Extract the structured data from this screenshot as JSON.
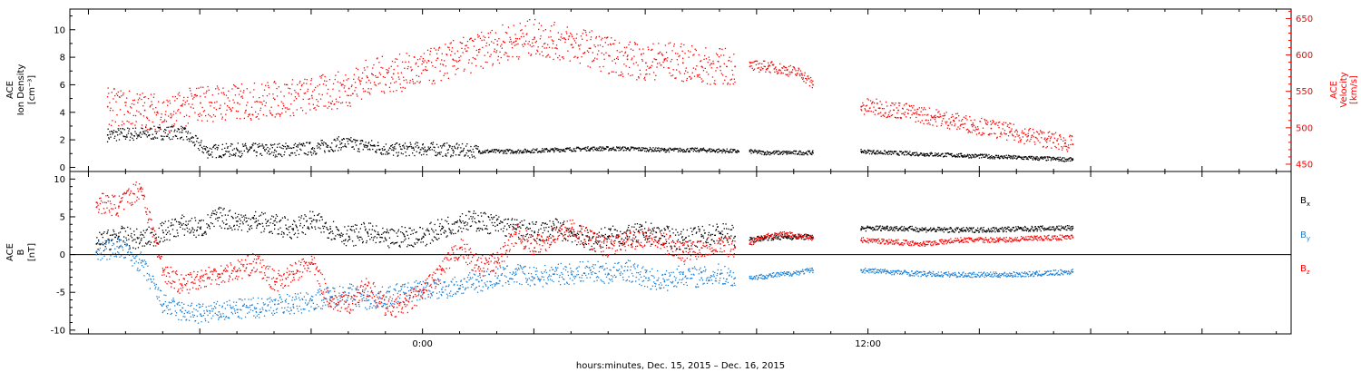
{
  "chart_data": [
    {
      "type": "scatter",
      "panel": "top",
      "ylabel_left": [
        "ACE",
        "Ion Density",
        "[cm⁻³]"
      ],
      "ylabel_right": [
        "ACE",
        "Velocity",
        "[km/s]"
      ],
      "ylim_left": [
        -0.3,
        11.5
      ],
      "ylim_right": [
        440,
        663
      ],
      "yticks_left": [
        "0",
        "2",
        "4",
        "6",
        "8",
        "10"
      ],
      "yticks_right": [
        "450",
        "500",
        "550",
        "600",
        "650"
      ],
      "series": [
        {
          "axis": "left",
          "color": "#000000",
          "segments": [
            {
              "x": [
                -8.5,
                -7.5,
                -6.5,
                -5.8,
                -5.0,
                -4.0,
                -3.0,
                -2.2,
                -1.5,
                -0.8,
                0.0,
                0.8,
                1.5,
                2.5,
                3.5,
                4.5,
                5.5,
                6.5,
                7.5,
                8.5
              ],
              "y": [
                2.4,
                2.5,
                2.6,
                1.2,
                1.3,
                1.3,
                1.4,
                1.8,
                1.6,
                1.3,
                1.4,
                1.3,
                1.2,
                1.2,
                1.3,
                1.4,
                1.4,
                1.3,
                1.3,
                1.2
              ]
            },
            {
              "x": [
                8.8,
                9.2,
                9.8,
                10.5
              ],
              "y": [
                1.2,
                1.1,
                1.1,
                1.1
              ]
            },
            {
              "x": [
                11.8,
                12.5,
                13.5,
                14.5,
                15.5,
                16.5,
                17.5
              ],
              "y": [
                1.2,
                1.1,
                1.0,
                0.9,
                0.8,
                0.7,
                0.6
              ]
            }
          ]
        },
        {
          "axis": "right",
          "color": "#ff0000",
          "segments": [
            {
              "x": [
                -8.5,
                -7.5,
                -6.8,
                -6.0,
                -5.0,
                -4.0,
                -3.0,
                -2.0,
                -1.5,
                -0.8,
                0.0,
                0.8,
                1.5,
                2.0,
                2.5,
                3.0,
                3.5,
                4.0,
                4.5,
                5.0,
                5.5,
                6.0,
                6.5,
                7.0,
                7.5,
                8.0,
                8.4
              ],
              "y": [
                530,
                525,
                520,
                535,
                535,
                540,
                545,
                555,
                570,
                575,
                580,
                595,
                605,
                615,
                620,
                625,
                620,
                615,
                610,
                600,
                595,
                590,
                595,
                590,
                585,
                585,
                585
              ]
            },
            {
              "x": [
                8.8,
                9.3,
                9.8,
                10.2,
                10.5
              ],
              "y": [
                585,
                585,
                580,
                575,
                560
              ]
            },
            {
              "x": [
                11.8,
                12.3,
                12.8,
                13.3,
                13.8,
                14.3,
                14.8,
                15.3,
                15.8,
                16.3,
                16.8,
                17.3,
                17.5
              ],
              "y": [
                530,
                528,
                525,
                520,
                515,
                510,
                505,
                500,
                495,
                490,
                485,
                480,
                478
              ]
            }
          ]
        }
      ]
    },
    {
      "type": "scatter",
      "panel": "bottom",
      "ylabel_left": [
        "ACE",
        "B",
        "[nT]"
      ],
      "ylim": [
        -10.5,
        11
      ],
      "yticks": [
        "-10",
        "-5",
        "0",
        "5",
        "10"
      ],
      "zero_line": true,
      "series": [
        {
          "label": "B",
          "subscript": "x",
          "color": "#000000",
          "segments": [
            {
              "x": [
                -8.8,
                -8.2,
                -7.6,
                -7.0,
                -6.5,
                -6.0,
                -5.5,
                -5.0,
                -4.5,
                -4.0,
                -3.5,
                -3.0,
                -2.5,
                -2.0,
                -1.5,
                -1.0,
                -0.5,
                0.0,
                0.5,
                1.0,
                1.5,
                2.0,
                2.5,
                3.0,
                3.5,
                4.0,
                4.5,
                5.0,
                5.5,
                6.0,
                6.5,
                7.0,
                7.5,
                8.0,
                8.4
              ],
              "y": [
                1.5,
                2.5,
                2.0,
                3.0,
                4.0,
                3.5,
                5.0,
                4.5,
                4.5,
                4.0,
                3.5,
                4.5,
                3.5,
                2.5,
                3.0,
                2.0,
                2.5,
                2.5,
                3.5,
                4.5,
                4.5,
                4.0,
                3.5,
                3.0,
                3.5,
                3.0,
                2.0,
                2.5,
                2.5,
                3.0,
                2.5,
                2.0,
                2.5,
                3.0,
                2.5
              ]
            },
            {
              "x": [
                8.8,
                9.2,
                9.8,
                10.5
              ],
              "y": [
                2.0,
                2.3,
                2.4,
                2.4
              ]
            },
            {
              "x": [
                11.8,
                12.5,
                13.5,
                14.5,
                15.5,
                16.5,
                17.5
              ],
              "y": [
                3.5,
                3.6,
                3.4,
                3.3,
                3.4,
                3.5,
                3.6
              ]
            }
          ]
        },
        {
          "label": "B",
          "subscript": "y",
          "color": "#1a7fd4",
          "segments": [
            {
              "x": [
                -8.8,
                -8.2,
                -7.6,
                -7.0,
                -6.5,
                -6.0,
                -5.5,
                -5.0,
                -4.5,
                -4.0,
                -3.5,
                -3.0,
                -2.5,
                -2.0,
                -1.5,
                -1.0,
                -0.5,
                0.0,
                0.5,
                1.0,
                1.5,
                2.0,
                2.5,
                3.0,
                3.5,
                4.0,
                4.5,
                5.0,
                5.5,
                6.0,
                6.5,
                7.0,
                7.5,
                8.0,
                8.4
              ],
              "y": [
                0.5,
                1.0,
                -1.0,
                -6.5,
                -7.5,
                -7.8,
                -7.5,
                -7.2,
                -7.0,
                -6.5,
                -6.5,
                -6.0,
                -5.5,
                -5.0,
                -6.0,
                -5.5,
                -5.0,
                -4.5,
                -4.5,
                -4.0,
                -3.5,
                -3.0,
                -2.5,
                -3.0,
                -2.5,
                -2.5,
                -2.0,
                -2.5,
                -2.0,
                -3.0,
                -3.5,
                -2.5,
                -3.0,
                -2.5,
                -3.0
              ]
            },
            {
              "x": [
                8.8,
                9.2,
                9.8,
                10.5
              ],
              "y": [
                -3.0,
                -2.8,
                -2.5,
                -2.0
              ]
            },
            {
              "x": [
                11.8,
                12.5,
                13.5,
                14.5,
                15.5,
                16.5,
                17.5
              ],
              "y": [
                -2.0,
                -2.2,
                -2.5,
                -2.6,
                -2.6,
                -2.5,
                -2.2
              ]
            }
          ]
        },
        {
          "label": "B",
          "subscript": "z",
          "color": "#ff0000",
          "segments": [
            {
              "x": [
                -8.8,
                -8.2,
                -7.6,
                -7.0,
                -6.5,
                -6.0,
                -5.5,
                -5.0,
                -4.5,
                -4.0,
                -3.5,
                -3.0,
                -2.5,
                -2.0,
                -1.5,
                -1.0,
                -0.5,
                0.0,
                0.5,
                1.0,
                1.5,
                2.0,
                2.5,
                3.0,
                3.5,
                4.0,
                4.5,
                5.0,
                5.5,
                6.0,
                6.5,
                7.0,
                7.5,
                8.0,
                8.4
              ],
              "y": [
                7.0,
                6.5,
                9.0,
                -2.0,
                -4.0,
                -3.0,
                -2.5,
                -2.0,
                -1.0,
                -3.5,
                -2.5,
                -1.0,
                -6.0,
                -6.5,
                -4.0,
                -7.0,
                -6.5,
                -5.0,
                -2.0,
                1.0,
                -1.5,
                -1.0,
                3.0,
                1.0,
                2.5,
                3.5,
                2.0,
                1.0,
                2.0,
                2.5,
                1.5,
                0.5,
                1.0,
                1.5,
                1.0
              ]
            },
            {
              "x": [
                8.8,
                9.2,
                9.8,
                10.5
              ],
              "y": [
                1.5,
                2.5,
                2.8,
                2.3
              ]
            },
            {
              "x": [
                11.8,
                12.5,
                13.5,
                14.5,
                15.5,
                16.5,
                17.5
              ],
              "y": [
                2.0,
                1.8,
                1.5,
                2.0,
                2.0,
                2.2,
                2.4
              ]
            }
          ]
        }
      ]
    }
  ],
  "xaxis": {
    "range_hours": [
      -9.5,
      23.4
    ],
    "tick_labels": [
      {
        "x": 0,
        "label": "0:00"
      },
      {
        "x": 12,
        "label": "12:00"
      }
    ],
    "title": "hours:minutes, Dec. 15, 2015 – Dec. 16, 2015"
  }
}
